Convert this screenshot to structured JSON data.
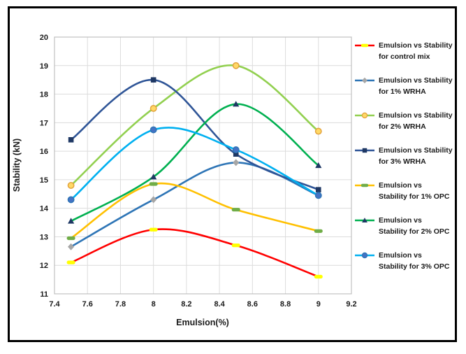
{
  "figure": {
    "frame_color": "#000000",
    "background_color": "#ffffff",
    "grid_color": "#dcdcdc",
    "plot_border_color": "#c0c0c0",
    "text_color": "#1a1a1a"
  },
  "chart_data": {
    "type": "line",
    "title": "",
    "xlabel": "Emulsion(%)",
    "ylabel": "Stability (kN)",
    "x": [
      7.5,
      8.0,
      8.5,
      9.0
    ],
    "xlim": [
      7.4,
      9.2
    ],
    "ylim": [
      11,
      20
    ],
    "x_ticks": [
      "7.4",
      "7.6",
      "7.8",
      "8",
      "8.2",
      "8.4",
      "8.6",
      "8.8",
      "9",
      "9.2"
    ],
    "y_ticks": [
      "11",
      "12",
      "13",
      "14",
      "15",
      "16",
      "17",
      "18",
      "19",
      "20"
    ],
    "grid": true,
    "line_style": "smooth",
    "legend_position": "right",
    "series": [
      {
        "name": "Emulsion vs Stability for control mix",
        "legend_lines": [
          "Emulsion vs Stability",
          "for control mix"
        ],
        "values": [
          12.1,
          13.25,
          12.7,
          11.6
        ],
        "line_color": "#ff0000",
        "marker": "dash",
        "marker_color": "#ffff00",
        "marker_edge": "#ffff00"
      },
      {
        "name": "Emulsion vs Stability for 1% WRHA",
        "legend_lines": [
          "Emulsion vs Stability",
          "for 1% WRHA"
        ],
        "values": [
          12.65,
          14.3,
          15.6,
          14.45
        ],
        "line_color": "#2e75b6",
        "marker": "diamond",
        "marker_color": "#a6a6a6",
        "marker_edge": "#a6a6a6"
      },
      {
        "name": "Emulsion vs Stability for 2% WRHA",
        "legend_lines": [
          "Emulsion vs Stability",
          "for 2% WRHA"
        ],
        "values": [
          14.8,
          17.5,
          19.0,
          16.7
        ],
        "line_color": "#92d050",
        "marker": "circle",
        "marker_color": "#ffd966",
        "marker_edge": "#e2a23c"
      },
      {
        "name": "Emulsion vs Stability for 3% WRHA",
        "legend_lines": [
          "Emulsion vs Stability",
          "for 3% WRHA"
        ],
        "values": [
          16.4,
          18.5,
          15.9,
          14.65
        ],
        "line_color": "#2f5597",
        "marker": "square",
        "marker_color": "#1f3864",
        "marker_edge": "#1f3864"
      },
      {
        "name": "Emulsion vs Stability for 1% OPC",
        "legend_lines": [
          "Emulsion vs",
          "Stability for 1% OPC"
        ],
        "values": [
          12.95,
          14.85,
          13.95,
          13.2
        ],
        "line_color": "#ffc000",
        "marker": "dash",
        "marker_color": "#70ad47",
        "marker_edge": "#70ad47"
      },
      {
        "name": "Emulsion vs Stability for 2% OPC",
        "legend_lines": [
          "Emulsion vs",
          "Stability for 2% OPC"
        ],
        "values": [
          13.55,
          15.1,
          17.65,
          15.5
        ],
        "line_color": "#00b050",
        "marker": "triangle",
        "marker_color": "#1f3864",
        "marker_edge": "#1f3864"
      },
      {
        "name": "Emulsion vs Stability for 3% OPC",
        "legend_lines": [
          "Emulsion vs",
          "Stability for 3% OPC"
        ],
        "values": [
          14.3,
          16.75,
          16.05,
          14.45
        ],
        "line_color": "#00b0f0",
        "marker": "circle",
        "marker_color": "#4472c4",
        "marker_edge": "#2e75b6"
      }
    ]
  }
}
